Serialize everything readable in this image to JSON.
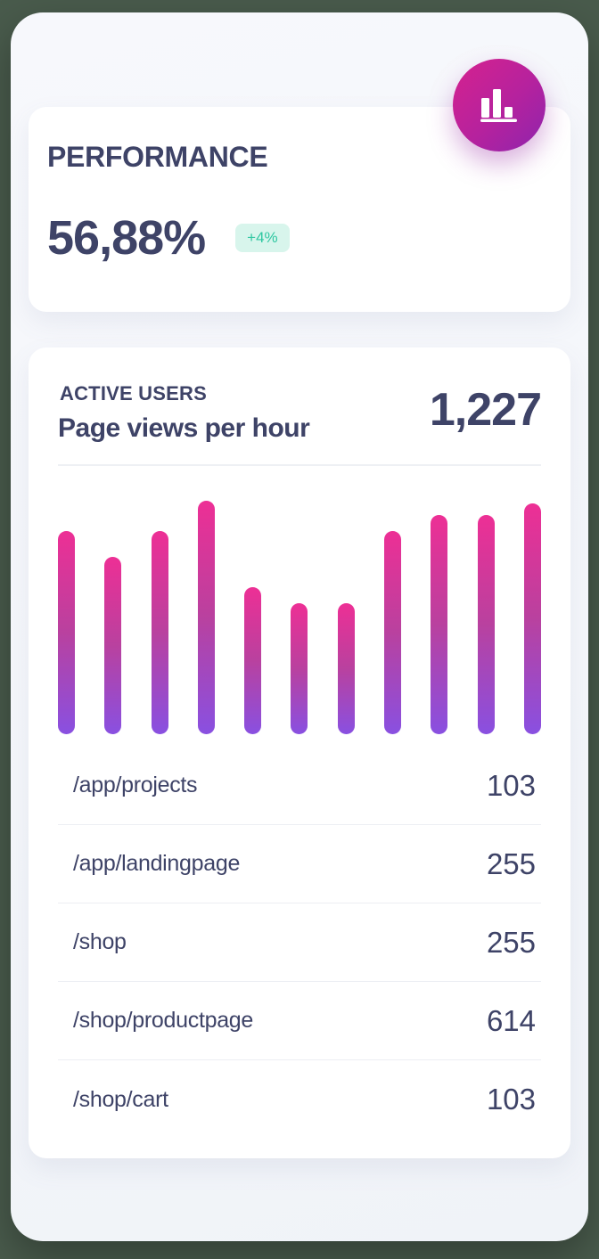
{
  "fab": {
    "icon": "bar-chart-icon"
  },
  "performance_card": {
    "title": "PERFORMANCE",
    "value": "56,88%",
    "delta_badge": "+4%"
  },
  "active_users_card": {
    "title": "ACTIVE USERS",
    "subtitle": "Page views per hour",
    "total": "1,227",
    "rows": [
      {
        "path": "/app/projects",
        "views": "103"
      },
      {
        "path": "/app/landingpage",
        "views": "255"
      },
      {
        "path": "/shop",
        "views": "255"
      },
      {
        "path": "/shop/productpage",
        "views": "614"
      },
      {
        "path": "/shop/cart",
        "views": "103"
      }
    ]
  },
  "chart_data": {
    "type": "bar",
    "title": "Page views per hour",
    "categories": [
      "",
      "",
      "",
      "",
      "",
      "",
      "",
      "",
      "",
      "",
      ""
    ],
    "values": [
      87,
      76,
      87,
      100,
      63,
      56,
      56,
      87,
      94,
      94,
      99
    ],
    "value_unit": "percent-of-max-bar-height",
    "xlabel": "",
    "ylabel": "",
    "axis_labels_shown": false,
    "grid": false,
    "legend": false,
    "bar_gradient_top": "#ed2f95",
    "bar_gradient_bottom": "#8950e1"
  },
  "colors": {
    "text_navy": "#3e4367",
    "badge_bg_mint": "#d8f5ec",
    "badge_text_teal": "#2fc7a1",
    "fab_gradient_start": "#d6218e",
    "fab_gradient_end": "#8e24ad",
    "bar_gradient_top": "#ed2f95",
    "bar_gradient_bottom": "#8950e1",
    "screen_bg": "#f4f6fa",
    "card_bg": "#ffffff",
    "divider": "#eceef3"
  }
}
